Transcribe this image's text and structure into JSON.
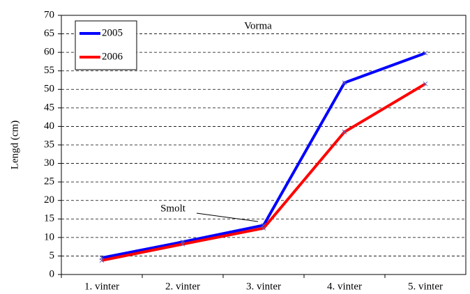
{
  "chart_data": {
    "type": "line",
    "title": "Vorma",
    "y_label": "Lengd (cm)",
    "categories": [
      "1. vinter",
      "2. vinter",
      "3. vinter",
      "4. vinter",
      "5. vinter"
    ],
    "series": [
      {
        "name": "2005",
        "color": "#0000ff",
        "values": [
          4.5,
          8.8,
          13.3,
          51.8,
          59.8
        ]
      },
      {
        "name": "2006",
        "color": "#ff0000",
        "values": [
          3.8,
          8.2,
          12.5,
          38.5,
          51.5
        ]
      }
    ],
    "annotations": [
      "Smolt"
    ],
    "ylim": [
      0,
      70
    ],
    "yticks": [
      0,
      5,
      10,
      15,
      20,
      25,
      30,
      35,
      40,
      45,
      50,
      55,
      60,
      65,
      70
    ],
    "grid": true,
    "legend": "top-left"
  }
}
